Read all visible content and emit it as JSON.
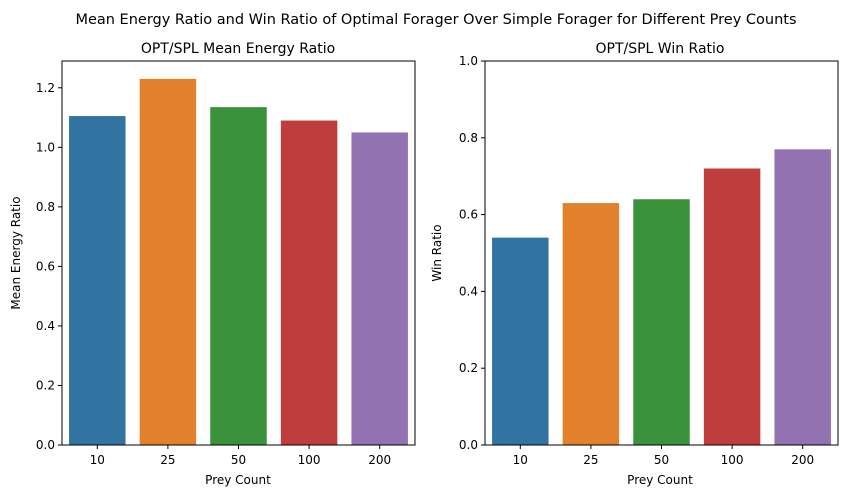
{
  "figure": {
    "suptitle": "Mean Energy Ratio and Win Ratio of Optimal Forager Over Simple Forager for Different Prey Counts"
  },
  "chart_data": [
    {
      "type": "bar",
      "title": "OPT/SPL Mean Energy Ratio",
      "xlabel": "Prey Count",
      "ylabel": "Mean Energy Ratio",
      "categories": [
        "10",
        "25",
        "50",
        "100",
        "200"
      ],
      "values": [
        1.105,
        1.23,
        1.135,
        1.09,
        1.05
      ],
      "colors": [
        "#3274a1",
        "#e1812c",
        "#3a923a",
        "#c03d3e",
        "#9372b2"
      ],
      "ylim": [
        0,
        1.29
      ],
      "yticks": [
        0.0,
        0.2,
        0.4,
        0.6,
        0.8,
        1.0,
        1.2
      ],
      "ytick_labels": [
        "0.0",
        "0.2",
        "0.4",
        "0.6",
        "0.8",
        "1.0",
        "1.2"
      ],
      "grid": false
    },
    {
      "type": "bar",
      "title": "OPT/SPL Win Ratio",
      "xlabel": "Prey Count",
      "ylabel": "Win Ratio",
      "categories": [
        "10",
        "25",
        "50",
        "100",
        "200"
      ],
      "values": [
        0.54,
        0.63,
        0.64,
        0.72,
        0.77
      ],
      "colors": [
        "#3274a1",
        "#e1812c",
        "#3a923a",
        "#c03d3e",
        "#9372b2"
      ],
      "ylim": [
        0,
        1.0
      ],
      "yticks": [
        0.0,
        0.2,
        0.4,
        0.6,
        0.8,
        1.0
      ],
      "ytick_labels": [
        "0.0",
        "0.2",
        "0.4",
        "0.6",
        "0.8",
        "1.0"
      ],
      "grid": false
    }
  ]
}
